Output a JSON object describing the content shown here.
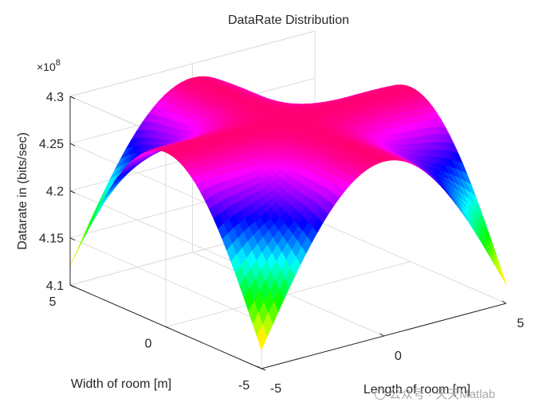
{
  "chart_data": {
    "type": "surface",
    "title": "DataRate Distribution",
    "xlabel": "Length of room [m]",
    "ylabel": "Width of room [m]",
    "zlabel": "Datarate in (bits/sec)",
    "exponent_prefix": "×10",
    "exponent_power": "8",
    "xlim": [
      -5,
      5
    ],
    "ylim": [
      -5,
      5
    ],
    "zlim": [
      4.1,
      4.3
    ],
    "xticks": [
      "-5",
      "0",
      "5"
    ],
    "yticks": [
      "-5",
      "0",
      "5"
    ],
    "zticks": [
      "4.1",
      "4.15",
      "4.2",
      "4.25",
      "4.3"
    ],
    "grid": true,
    "colormap": "hsv",
    "description_values": {
      "peak_center": 4.285,
      "mid_edge": 4.265,
      "corner_min": 4.12
    }
  },
  "watermark": "公众号 · 天天Matlab"
}
